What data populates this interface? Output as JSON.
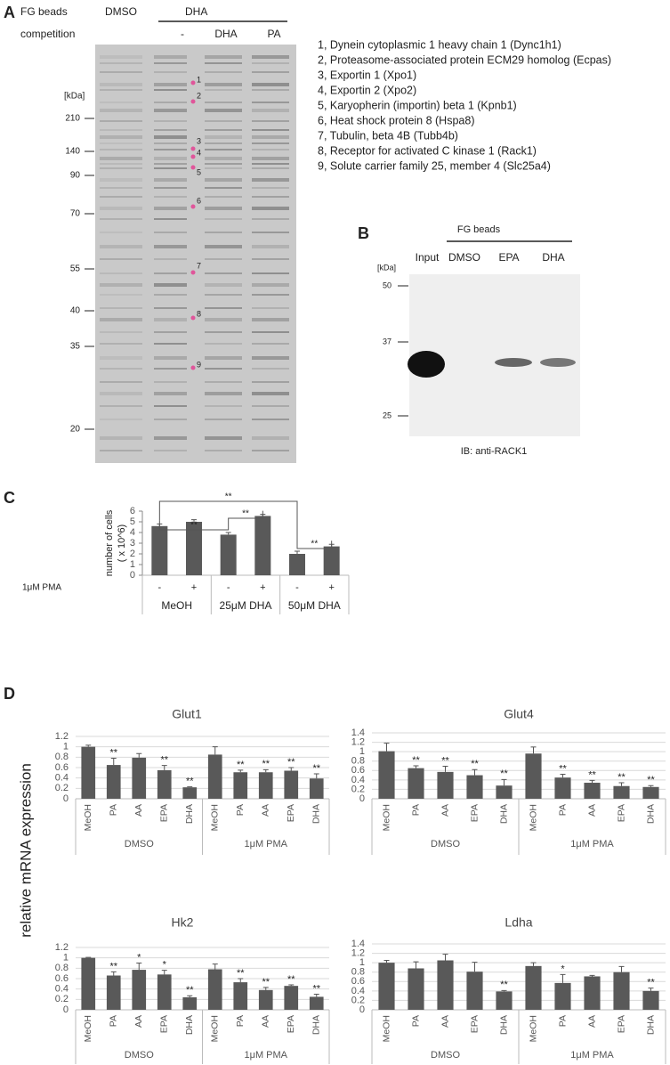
{
  "panel_a": {
    "label": "A",
    "row1_label": "FG beads",
    "dmso": "DMSO",
    "dha": "DHA",
    "row2_label": "competition",
    "competition": [
      "-",
      "DHA",
      "PA"
    ],
    "unit": "[kDa]",
    "markers": [
      210,
      140,
      90,
      70,
      55,
      40,
      35,
      20
    ],
    "band_labels": [
      1,
      2,
      3,
      4,
      5,
      6,
      7,
      8,
      9
    ],
    "proteins": [
      "1, Dynein cytoplasmic 1 heavy chain 1 (Dync1h1)",
      "2, Proteasome-associated protein ECM29 homolog (Ecpas)",
      "3, Exportin 1 (Xpo1)",
      "4, Exportin 2 (Xpo2)",
      "5, Karyopherin (importin) beta 1 (Kpnb1)",
      "6, Heat shock protein 8 (Hspa8)",
      "7, Tubulin, beta 4B (Tubb4b)",
      "8, Receptor for activated C kinase 1 (Rack1)",
      "9, Solute carrier family 25, member 4 (Slc25a4)"
    ]
  },
  "panel_b": {
    "label": "B",
    "header": "FG beads",
    "lanes": [
      "Input",
      "DMSO",
      "EPA",
      "DHA"
    ],
    "unit": "[kDa]",
    "markers": [
      50,
      37,
      25
    ],
    "caption": "IB: anti-RACK1"
  },
  "panel_d": {
    "label": "D",
    "ylabel": "relative mRNA expression"
  },
  "chart_data": [
    {
      "type": "bar",
      "panel": "C",
      "ylabel": [
        "number of cells",
        "( x 10^6)"
      ],
      "row_label": "1μM PMA",
      "categories": [
        "-",
        "+",
        "-",
        "+",
        "-",
        "+"
      ],
      "groups": [
        "MeOH",
        "25μM DHA",
        "50μM DHA"
      ],
      "values": [
        4.6,
        5.0,
        3.8,
        5.55,
        2.0,
        2.7
      ],
      "errors": [
        0.2,
        0.2,
        0.2,
        0.15,
        0.25,
        0.2
      ],
      "brackets": [
        "**",
        "**",
        "**",
        "**"
      ],
      "color": "#595959",
      "ylim": [
        0,
        6
      ],
      "yticks": [
        0,
        1,
        2,
        3,
        4,
        5,
        6
      ],
      "grid": false
    },
    {
      "type": "bar",
      "title": "Glut1",
      "categories": [
        "MeOH",
        "PA",
        "AA",
        "EPA",
        "DHA",
        "MeOH",
        "PA",
        "AA",
        "EPA",
        "DHA"
      ],
      "groups": [
        "DMSO",
        "1μM PMA"
      ],
      "values": [
        1.0,
        0.65,
        0.79,
        0.55,
        0.22,
        0.85,
        0.51,
        0.51,
        0.54,
        0.39
      ],
      "errors": [
        0.03,
        0.13,
        0.08,
        0.09,
        0.01,
        0.15,
        0.04,
        0.05,
        0.06,
        0.09
      ],
      "annotations": [
        null,
        "**",
        null,
        "**",
        "**",
        null,
        "**",
        "**",
        "**",
        "**"
      ],
      "color": "#595959",
      "ylim": [
        0,
        1.2
      ],
      "yticks": [
        0,
        0.2,
        0.4,
        0.6,
        0.8,
        1,
        1.2
      ],
      "grid": true
    },
    {
      "type": "bar",
      "title": "Glut4",
      "categories": [
        "MeOH",
        "PA",
        "AA",
        "EPA",
        "DHA",
        "MeOH",
        "PA",
        "AA",
        "EPA",
        "DHA"
      ],
      "groups": [
        "DMSO",
        "1μM PMA"
      ],
      "values": [
        1.01,
        0.65,
        0.57,
        0.5,
        0.28,
        0.96,
        0.45,
        0.34,
        0.27,
        0.25
      ],
      "errors": [
        0.17,
        0.05,
        0.12,
        0.12,
        0.13,
        0.14,
        0.07,
        0.05,
        0.07,
        0.03
      ],
      "annotations": [
        null,
        "**",
        "**",
        "**",
        "**",
        null,
        "**",
        "**",
        "**",
        "**"
      ],
      "color": "#595959",
      "ylim": [
        0,
        1.4
      ],
      "yticks": [
        0,
        0.2,
        0.4,
        0.6,
        0.8,
        1,
        1.2,
        1.4
      ],
      "grid": true
    },
    {
      "type": "bar",
      "title": "Hk2",
      "categories": [
        "MeOH",
        "PA",
        "AA",
        "EPA",
        "DHA",
        "MeOH",
        "PA",
        "AA",
        "EPA",
        "DHA"
      ],
      "groups": [
        "DMSO",
        "1μM PMA"
      ],
      "values": [
        1.0,
        0.66,
        0.77,
        0.68,
        0.24,
        0.78,
        0.53,
        0.38,
        0.46,
        0.25
      ],
      "errors": [
        0.01,
        0.07,
        0.13,
        0.08,
        0.03,
        0.1,
        0.07,
        0.05,
        0.02,
        0.05
      ],
      "annotations": [
        null,
        "**",
        "*",
        "*",
        "**",
        null,
        "**",
        "**",
        "**",
        "**"
      ],
      "color": "#595959",
      "ylim": [
        0,
        1.2
      ],
      "yticks": [
        0,
        0.2,
        0.4,
        0.6,
        0.8,
        1,
        1.2
      ],
      "grid": true
    },
    {
      "type": "bar",
      "title": "Ldha",
      "categories": [
        "MeOH",
        "PA",
        "AA",
        "EPA",
        "DHA",
        "MeOH",
        "PA",
        "AA",
        "EPA",
        "DHA"
      ],
      "groups": [
        "DMSO",
        "1μM PMA"
      ],
      "values": [
        1.0,
        0.88,
        1.05,
        0.81,
        0.39,
        0.93,
        0.57,
        0.71,
        0.8,
        0.4
      ],
      "errors": [
        0.05,
        0.14,
        0.13,
        0.2,
        0.02,
        0.07,
        0.18,
        0.02,
        0.12,
        0.06
      ],
      "annotations": [
        null,
        null,
        null,
        null,
        "**",
        null,
        "*",
        null,
        null,
        "**"
      ],
      "color": "#595959",
      "ylim": [
        0,
        1.4
      ],
      "yticks": [
        0,
        0.2,
        0.4,
        0.6,
        0.8,
        1,
        1.2,
        1.4
      ],
      "grid": true
    }
  ]
}
